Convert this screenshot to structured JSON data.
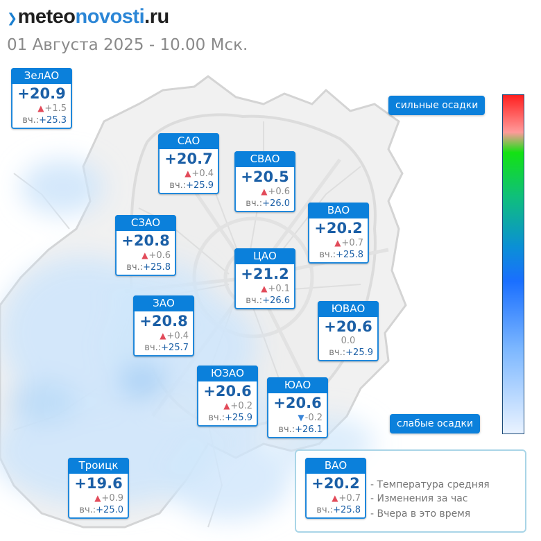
{
  "header": {
    "logo_part1": "meteo",
    "logo_part2": "novosti",
    "logo_part3": ".ru",
    "subtitle": "01 Августа 2025 - 10.00 Мск."
  },
  "districts": [
    {
      "name": "ЗелАО",
      "temp": "+20.9",
      "change": "+1.5",
      "trend": "up",
      "yesterday_label": "вч.:",
      "yesterday": "+25.3"
    },
    {
      "name": "САО",
      "temp": "+20.7",
      "change": "+0.4",
      "trend": "up",
      "yesterday_label": "вч.:",
      "yesterday": "+25.9"
    },
    {
      "name": "СВАО",
      "temp": "+20.5",
      "change": "+0.6",
      "trend": "up",
      "yesterday_label": "вч.:",
      "yesterday": "+26.0"
    },
    {
      "name": "ВАО",
      "temp": "+20.2",
      "change": "+0.7",
      "trend": "up",
      "yesterday_label": "вч.:",
      "yesterday": "+25.8"
    },
    {
      "name": "СЗАО",
      "temp": "+20.8",
      "change": "+0.6",
      "trend": "up",
      "yesterday_label": "вч.:",
      "yesterday": "+25.8"
    },
    {
      "name": "ЦАО",
      "temp": "+21.2",
      "change": "+0.1",
      "trend": "up",
      "yesterday_label": "вч.:",
      "yesterday": "+26.6"
    },
    {
      "name": "ЗАО",
      "temp": "+20.8",
      "change": "+0.4",
      "trend": "up",
      "yesterday_label": "вч.:",
      "yesterday": "+25.7"
    },
    {
      "name": "ЮВАО",
      "temp": "+20.6",
      "change": "0.0",
      "trend": "none",
      "yesterday_label": "вч.:",
      "yesterday": "+25.9"
    },
    {
      "name": "ЮЗАО",
      "temp": "+20.6",
      "change": "+0.2",
      "trend": "up",
      "yesterday_label": "вч.:",
      "yesterday": "+25.9"
    },
    {
      "name": "ЮАО",
      "temp": "+20.6",
      "change": "-0.2",
      "trend": "down",
      "yesterday_label": "вч.:",
      "yesterday": "+26.1"
    },
    {
      "name": "Троицк",
      "temp": "+19.6",
      "change": "+0.9",
      "trend": "up",
      "yesterday_label": "вч.:",
      "yesterday": "+25.0"
    }
  ],
  "precip_scale": {
    "top_label": "сильные осадки",
    "bottom_label": "слабые осадки"
  },
  "legend": {
    "example": {
      "name": "ВАО",
      "temp": "+20.2",
      "change": "+0.7",
      "trend": "up",
      "yesterday_label": "вч.:",
      "yesterday": "+25.8"
    },
    "items": [
      "- Температура средняя",
      "- Изменения за час",
      "- Вчера в это время"
    ]
  },
  "colors": {
    "brand_blue": "#0b80db",
    "temp_text": "#1b5fa6",
    "trend_up": "#e24b5a",
    "trend_down": "#3b86d8",
    "precip_light": "#cfe6fb"
  }
}
